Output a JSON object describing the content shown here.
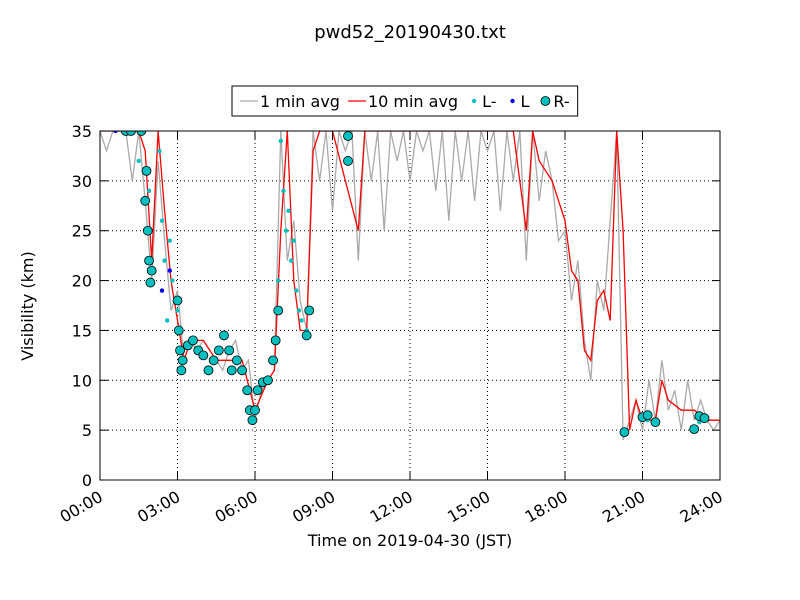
{
  "chart_data": {
    "type": "line",
    "title": "pwd52_20190430.txt",
    "x_label": "Time on 2019-04-30 (JST)",
    "y_label": "Visibility (km)",
    "xlim": [
      0,
      24
    ],
    "ylim": [
      0,
      35
    ],
    "xticks": [
      {
        "value": 0,
        "label": "00:00"
      },
      {
        "value": 3,
        "label": "03:00"
      },
      {
        "value": 6,
        "label": "06:00"
      },
      {
        "value": 9,
        "label": "09:00"
      },
      {
        "value": 12,
        "label": "12:00"
      },
      {
        "value": 15,
        "label": "15:00"
      },
      {
        "value": 18,
        "label": "18:00"
      },
      {
        "value": 21,
        "label": "21:00"
      },
      {
        "value": 24,
        "label": "24:00"
      }
    ],
    "yticks": [
      0,
      5,
      10,
      15,
      20,
      25,
      30,
      35
    ],
    "grid": true,
    "legend": "top",
    "series": [
      {
        "name": "1 min avg",
        "color": "#aaaaaa",
        "style": "line",
        "x": [
          0,
          0.25,
          0.5,
          0.75,
          1,
          1.25,
          1.5,
          1.75,
          2,
          2.25,
          2.5,
          2.75,
          3,
          3.25,
          3.5,
          3.75,
          4,
          4.25,
          4.5,
          4.75,
          5,
          5.25,
          5.5,
          5.75,
          6,
          6.25,
          6.5,
          6.75,
          7,
          7.25,
          7.5,
          7.75,
          8,
          8.25,
          8.5,
          8.75,
          9,
          9.25,
          9.5,
          9.75,
          10,
          10.25,
          10.5,
          10.75,
          11,
          11.25,
          11.5,
          11.75,
          12,
          12.25,
          12.5,
          12.75,
          13,
          13.25,
          13.5,
          13.75,
          14,
          14.25,
          14.5,
          14.75,
          15,
          15.25,
          15.5,
          15.75,
          16,
          16.25,
          16.5,
          16.75,
          17,
          17.25,
          17.5,
          17.75,
          18,
          18.25,
          18.5,
          18.75,
          19,
          19.25,
          19.5,
          19.75,
          20,
          20.25,
          20.5,
          20.75,
          21,
          21.25,
          21.5,
          21.75,
          22,
          22.25,
          22.5,
          22.75,
          23,
          23.25,
          23.5,
          23.75,
          24
        ],
        "values": [
          35,
          33,
          35,
          35,
          35,
          30,
          35,
          28,
          20,
          32,
          24,
          17,
          19,
          12,
          14,
          13,
          14,
          13,
          12,
          11,
          13,
          14,
          11,
          12,
          6,
          9,
          10,
          11,
          35,
          22,
          26,
          18,
          15,
          35,
          30,
          35,
          27,
          35,
          33,
          35,
          22,
          35,
          30,
          35,
          25,
          35,
          32,
          35,
          30,
          35,
          33,
          35,
          29,
          35,
          26,
          35,
          30,
          35,
          28,
          35,
          33,
          35,
          27,
          35,
          30,
          35,
          22,
          35,
          28,
          33,
          30,
          24,
          25,
          18,
          22,
          14,
          10,
          20,
          17,
          26,
          35,
          4,
          6,
          8,
          5,
          10,
          6,
          12,
          7,
          9,
          5,
          10,
          6,
          8,
          6,
          5,
          6
        ]
      },
      {
        "name": "10 min avg",
        "color": "#ff0000",
        "style": "line",
        "x": [
          0,
          0.5,
          1,
          1.5,
          1.75,
          2,
          2.25,
          2.5,
          2.75,
          3,
          3.25,
          3.5,
          4,
          4.5,
          5,
          5.5,
          6,
          6.5,
          6.75,
          7,
          7.25,
          7.5,
          7.75,
          8,
          8.25,
          8.5,
          9,
          10,
          10.25,
          11,
          12,
          13,
          14,
          15,
          16,
          16.5,
          16.75,
          17,
          17.5,
          18,
          18.25,
          18.5,
          18.75,
          19,
          19.25,
          19.5,
          19.75,
          20,
          20.25,
          20.5,
          20.75,
          21,
          21.5,
          21.75,
          22,
          22.5,
          23,
          23.5,
          24
        ],
        "values": [
          35,
          35,
          35,
          35,
          33,
          22,
          35,
          27,
          20,
          16,
          12,
          14,
          14,
          12,
          12,
          12,
          7,
          10,
          11,
          25,
          35,
          20,
          15,
          15,
          33,
          35,
          35,
          25,
          35,
          35,
          35,
          35,
          35,
          35,
          35,
          25,
          35,
          32,
          30,
          26,
          21,
          20,
          13,
          12,
          18,
          19,
          16,
          35,
          25,
          5,
          8,
          6,
          6,
          10,
          8,
          7,
          7,
          6,
          6
        ]
      },
      {
        "name": "L-",
        "color": "#00bfbf",
        "style": "small",
        "x": [
          1.5,
          1.9,
          2.3,
          2.4,
          2.5,
          2.6,
          2.7,
          2.8,
          3,
          6.9,
          7,
          7.1,
          7.2,
          7.3,
          7.4,
          7.5,
          7.6,
          7.7,
          7.8,
          8,
          21.2,
          23.2
        ],
        "values": [
          32,
          29,
          33,
          26,
          22,
          16,
          24,
          20,
          17,
          20,
          34,
          29,
          25,
          27,
          22,
          24,
          19,
          17,
          16,
          15,
          6,
          5.8
        ]
      },
      {
        "name": "L",
        "color": "#0000ff",
        "style": "small",
        "x": [
          0.6,
          2.4,
          2.7
        ],
        "values": [
          35,
          19,
          21
        ]
      },
      {
        "name": "R-",
        "color": "#00bfbf",
        "style": "large",
        "x": [
          1,
          1.2,
          1.6,
          1.75,
          1.8,
          1.85,
          1.9,
          1.95,
          2,
          3,
          3.05,
          3.1,
          3.15,
          3.2,
          3.4,
          3.6,
          3.8,
          4,
          4.2,
          4.4,
          4.6,
          4.8,
          5,
          5.1,
          5.3,
          5.5,
          5.7,
          5.8,
          5.9,
          6,
          6.1,
          6.3,
          6.5,
          6.7,
          6.8,
          6.9,
          8,
          8.1,
          9.6,
          9.6,
          20.3,
          21,
          21.2,
          21.5,
          23,
          23.2,
          23.4
        ],
        "values": [
          35,
          35,
          35,
          28,
          31,
          25,
          22,
          19.8,
          21,
          18,
          15,
          13,
          11,
          12,
          13.5,
          14,
          13,
          12.5,
          11,
          12,
          13,
          14.5,
          13,
          11,
          12,
          11,
          9,
          7,
          6,
          7,
          9,
          9.8,
          10,
          12,
          14,
          17,
          14.5,
          17,
          32,
          34.5,
          4.8,
          6.3,
          6.5,
          5.8,
          5.1,
          6.4,
          6.2
        ]
      }
    ]
  }
}
